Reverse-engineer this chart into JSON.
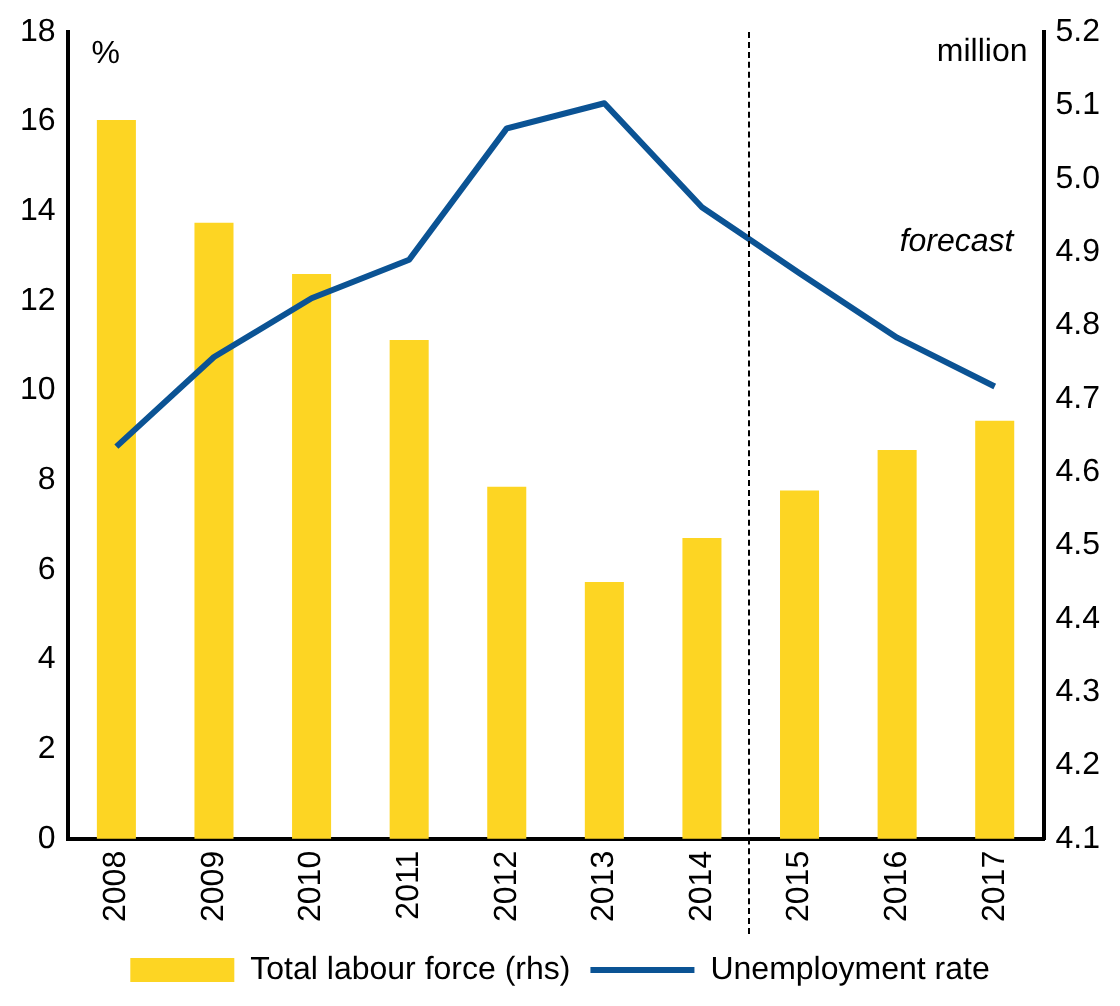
{
  "chart_data": {
    "type": "bar",
    "categories": [
      "2008",
      "2009",
      "2010",
      "2011",
      "2012",
      "2013",
      "2014",
      "2015",
      "2016",
      "2017"
    ],
    "series": [
      {
        "name": "Total labour force (rhs)",
        "axis": "y2",
        "color": "#fdd523",
        "values": [
          5.08,
          4.94,
          4.87,
          4.78,
          4.58,
          4.45,
          4.51,
          4.575,
          4.63,
          4.67
        ]
      },
      {
        "name": "Unemployment rate",
        "type": "line",
        "axis": "y",
        "color": "#0b5394",
        "values": [
          8.75,
          10.75,
          12.06,
          12.92,
          15.85,
          16.41,
          14.09,
          12.62,
          11.18,
          10.09
        ]
      }
    ],
    "ylabel": "%",
    "y2label": "million",
    "ylim": [
      0,
      18
    ],
    "yticks": [
      0,
      2,
      4,
      6,
      8,
      10,
      12,
      14,
      16,
      18
    ],
    "y2lim": [
      4.1,
      5.2
    ],
    "y2ticks": [
      {
        "value": 4.1,
        "label": "4.1"
      },
      {
        "value": 4.2,
        "label": "4.2"
      },
      {
        "value": 4.3,
        "label": "4.3"
      },
      {
        "value": 4.4,
        "label": "4.4"
      },
      {
        "value": 4.5,
        "label": "4.5"
      },
      {
        "value": 4.6,
        "label": "4.6"
      },
      {
        "value": 4.7,
        "label": "4.7"
      },
      {
        "value": 4.8,
        "label": "4.8"
      },
      {
        "value": 4.9,
        "label": "4.9"
      },
      {
        "value": 5.0,
        "label": "5.0"
      },
      {
        "value": 5.1,
        "label": "5.1"
      },
      {
        "value": 5.2,
        "label": "5.2"
      }
    ],
    "annotations": [
      "forecast"
    ],
    "grid": false,
    "legend": "bottom",
    "marker": "none",
    "line_style": "solid"
  }
}
